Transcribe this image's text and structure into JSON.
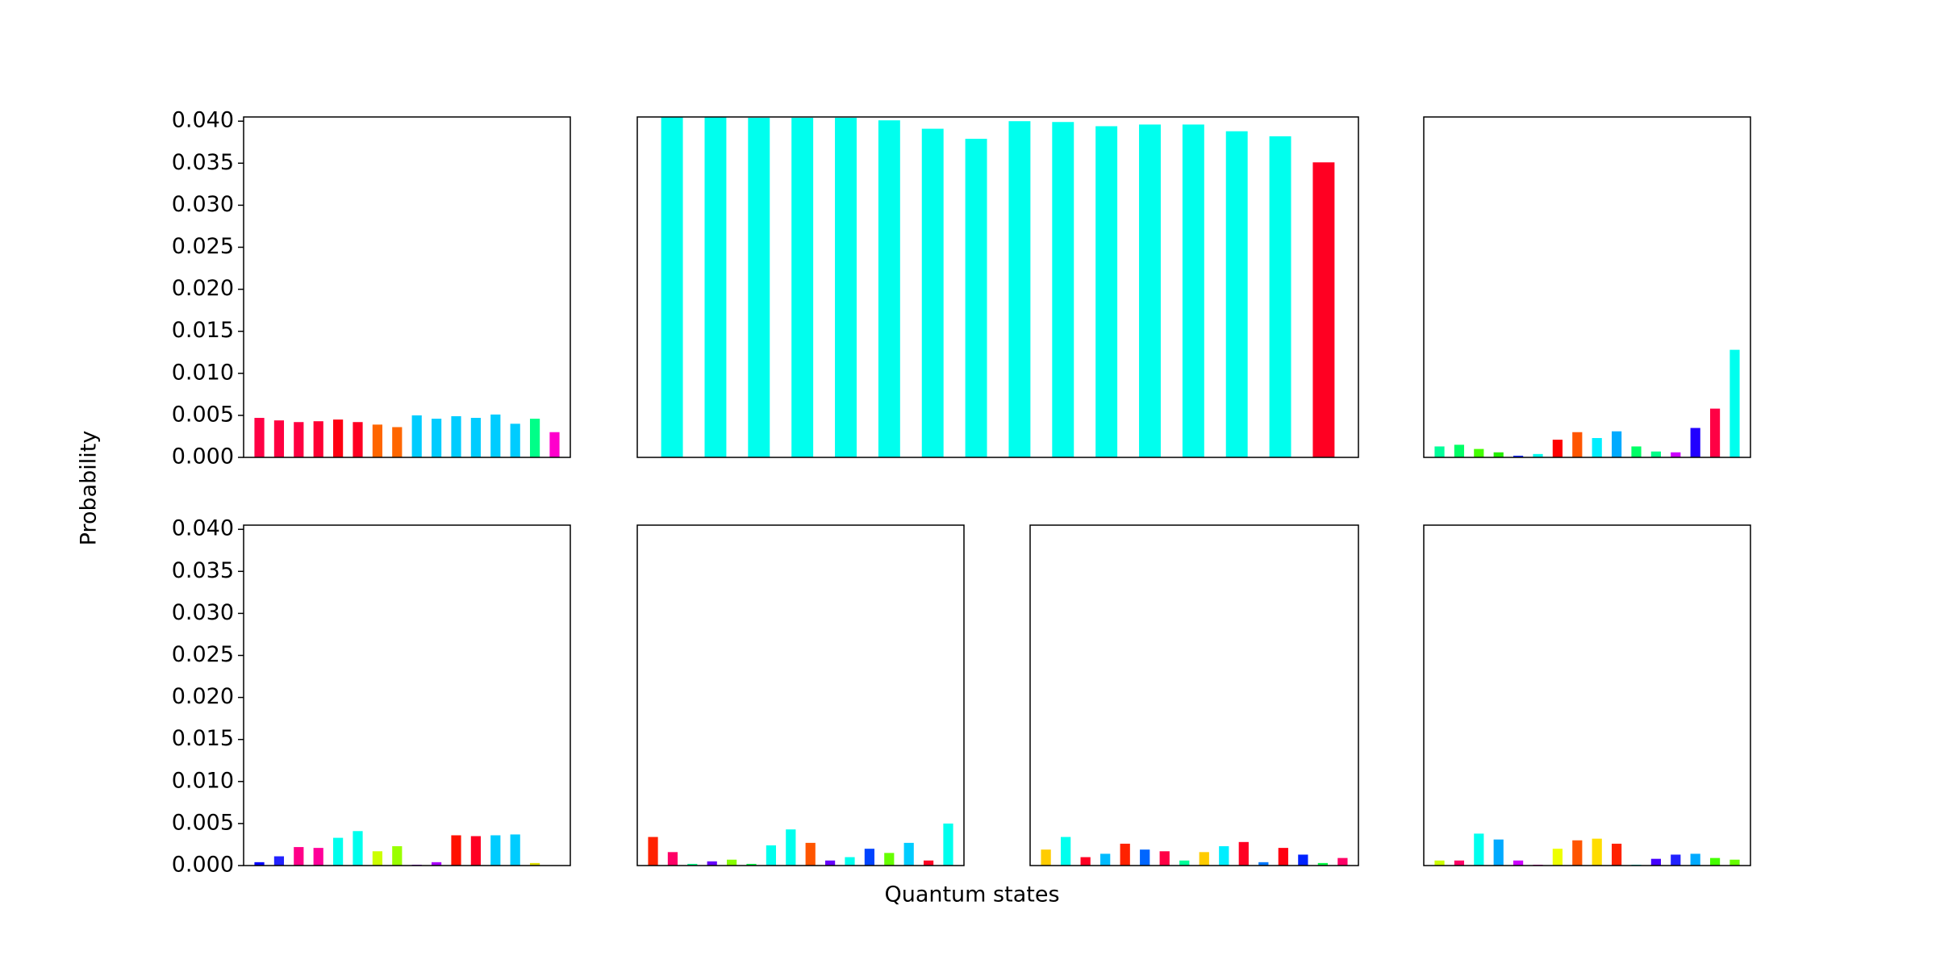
{
  "figure": {
    "xlabel": "Quantum states",
    "ylabel": "Probability"
  },
  "chart_data": [
    {
      "type": "bar",
      "ylim": [
        0,
        0.0405
      ],
      "yticks": [
        "0.000",
        "0.005",
        "0.010",
        "0.015",
        "0.020",
        "0.025",
        "0.030",
        "0.035",
        "0.040"
      ],
      "show_yticks": true,
      "values": [
        0.0047,
        0.0044,
        0.0042,
        0.0043,
        0.0045,
        0.0042,
        0.0039,
        0.0036,
        0.005,
        0.0046,
        0.0049,
        0.0047,
        0.0051,
        0.004,
        0.0046,
        0.003
      ],
      "colors": [
        "#ff0044",
        "#ff0040",
        "#ff0040",
        "#ff0033",
        "#ff0011",
        "#ff0022",
        "#ff6600",
        "#ff6600",
        "#00ccff",
        "#00ccff",
        "#00ccff",
        "#00ccff",
        "#00ccff",
        "#00ccff",
        "#00ff88",
        "#ff00cc"
      ]
    },
    {
      "type": "bar",
      "ylim": [
        0,
        0.0405
      ],
      "show_yticks": false,
      "values": [
        0.0405,
        0.0405,
        0.0404,
        0.0404,
        0.0404,
        0.0401,
        0.0391,
        0.0379,
        0.04,
        0.0399,
        0.0394,
        0.0396,
        0.0396,
        0.0388,
        0.0382,
        0.0351
      ],
      "colors": [
        "#00ffee",
        "#00ffee",
        "#00ffee",
        "#00ffee",
        "#00ffee",
        "#00ffee",
        "#00ffee",
        "#00ffee",
        "#00ffee",
        "#00ffee",
        "#00ffee",
        "#00ffee",
        "#00ffee",
        "#00ffee",
        "#00ffee",
        "#ff0022"
      ]
    },
    {
      "type": "bar",
      "ylim": [
        0,
        0.0405
      ],
      "show_yticks": false,
      "values": [
        0.0013,
        0.0015,
        0.001,
        0.0006,
        0.0002,
        0.0004,
        0.0021,
        0.003,
        0.0023,
        0.0031,
        0.0013,
        0.0007,
        0.0006,
        0.0035,
        0.0058,
        0.0128
      ],
      "colors": [
        "#00ff99",
        "#00ff66",
        "#44ff00",
        "#22ee00",
        "#0022ff",
        "#00ffee",
        "#ff0000",
        "#ff5500",
        "#00eeff",
        "#00aaff",
        "#00ff66",
        "#00ff88",
        "#cc00ff",
        "#2200ff",
        "#ff0044",
        "#00ffee"
      ]
    },
    {
      "type": "bar",
      "ylim": [
        0,
        0.0405
      ],
      "yticks": [
        "0.000",
        "0.005",
        "0.010",
        "0.015",
        "0.020",
        "0.025",
        "0.030",
        "0.035",
        "0.040"
      ],
      "show_yticks": true,
      "values": [
        0.0004,
        0.0011,
        0.0022,
        0.0021,
        0.0033,
        0.0041,
        0.0017,
        0.0023,
        0.0001,
        0.0004,
        0.0036,
        0.0035,
        0.0036,
        0.0037,
        0.0003,
        0.0
      ],
      "colors": [
        "#0000ff",
        "#2222ff",
        "#ff0088",
        "#ff0099",
        "#00ffee",
        "#00ffee",
        "#ccff00",
        "#99ff00",
        "#9900ff",
        "#aa00ff",
        "#ff1100",
        "#ff0022",
        "#00ccff",
        "#00ccff",
        "#dddd00",
        "#ffffff"
      ]
    },
    {
      "type": "bar",
      "ylim": [
        0,
        0.0405
      ],
      "show_yticks": false,
      "values": [
        0.0034,
        0.0016,
        0.0002,
        0.0005,
        0.0007,
        0.0002,
        0.0024,
        0.0043,
        0.0027,
        0.0006,
        0.001,
        0.002,
        0.0015,
        0.0027,
        0.0006,
        0.005
      ],
      "colors": [
        "#ff2200",
        "#ff0066",
        "#00ff88",
        "#6600ff",
        "#88ff00",
        "#00ff44",
        "#00ffee",
        "#00ffee",
        "#ff5500",
        "#6600ff",
        "#00ffee",
        "#0044ff",
        "#66ff00",
        "#00ccff",
        "#ff0022",
        "#00ffee"
      ]
    },
    {
      "type": "bar",
      "ylim": [
        0,
        0.0405
      ],
      "show_yticks": false,
      "values": [
        0.0019,
        0.0034,
        0.001,
        0.0014,
        0.0026,
        0.0019,
        0.0017,
        0.0006,
        0.0016,
        0.0023,
        0.0028,
        0.0004,
        0.0021,
        0.0013,
        0.0003,
        0.0009
      ],
      "colors": [
        "#ffcc00",
        "#00ffee",
        "#ff0022",
        "#00bbff",
        "#ff2200",
        "#0066ff",
        "#ff0044",
        "#00ff99",
        "#ffcc00",
        "#00eeff",
        "#ff0022",
        "#0077ff",
        "#ff0011",
        "#0022ff",
        "#00ff44",
        "#ff0066"
      ]
    },
    {
      "type": "bar",
      "ylim": [
        0,
        0.0405
      ],
      "show_yticks": false,
      "values": [
        0.0006,
        0.0006,
        0.0038,
        0.0031,
        0.0006,
        0.0001,
        0.002,
        0.003,
        0.0032,
        0.0026,
        0.0001,
        0.0008,
        0.0013,
        0.0014,
        0.0009,
        0.0007
      ],
      "colors": [
        "#ccff00",
        "#ff0066",
        "#00ffee",
        "#00aaff",
        "#cc00ff",
        "#ff00cc",
        "#eeff00",
        "#ff5500",
        "#ffdd00",
        "#ff2200",
        "#00ffee",
        "#4400ff",
        "#2222ff",
        "#00aaff",
        "#44ff00",
        "#66ff00"
      ]
    }
  ]
}
